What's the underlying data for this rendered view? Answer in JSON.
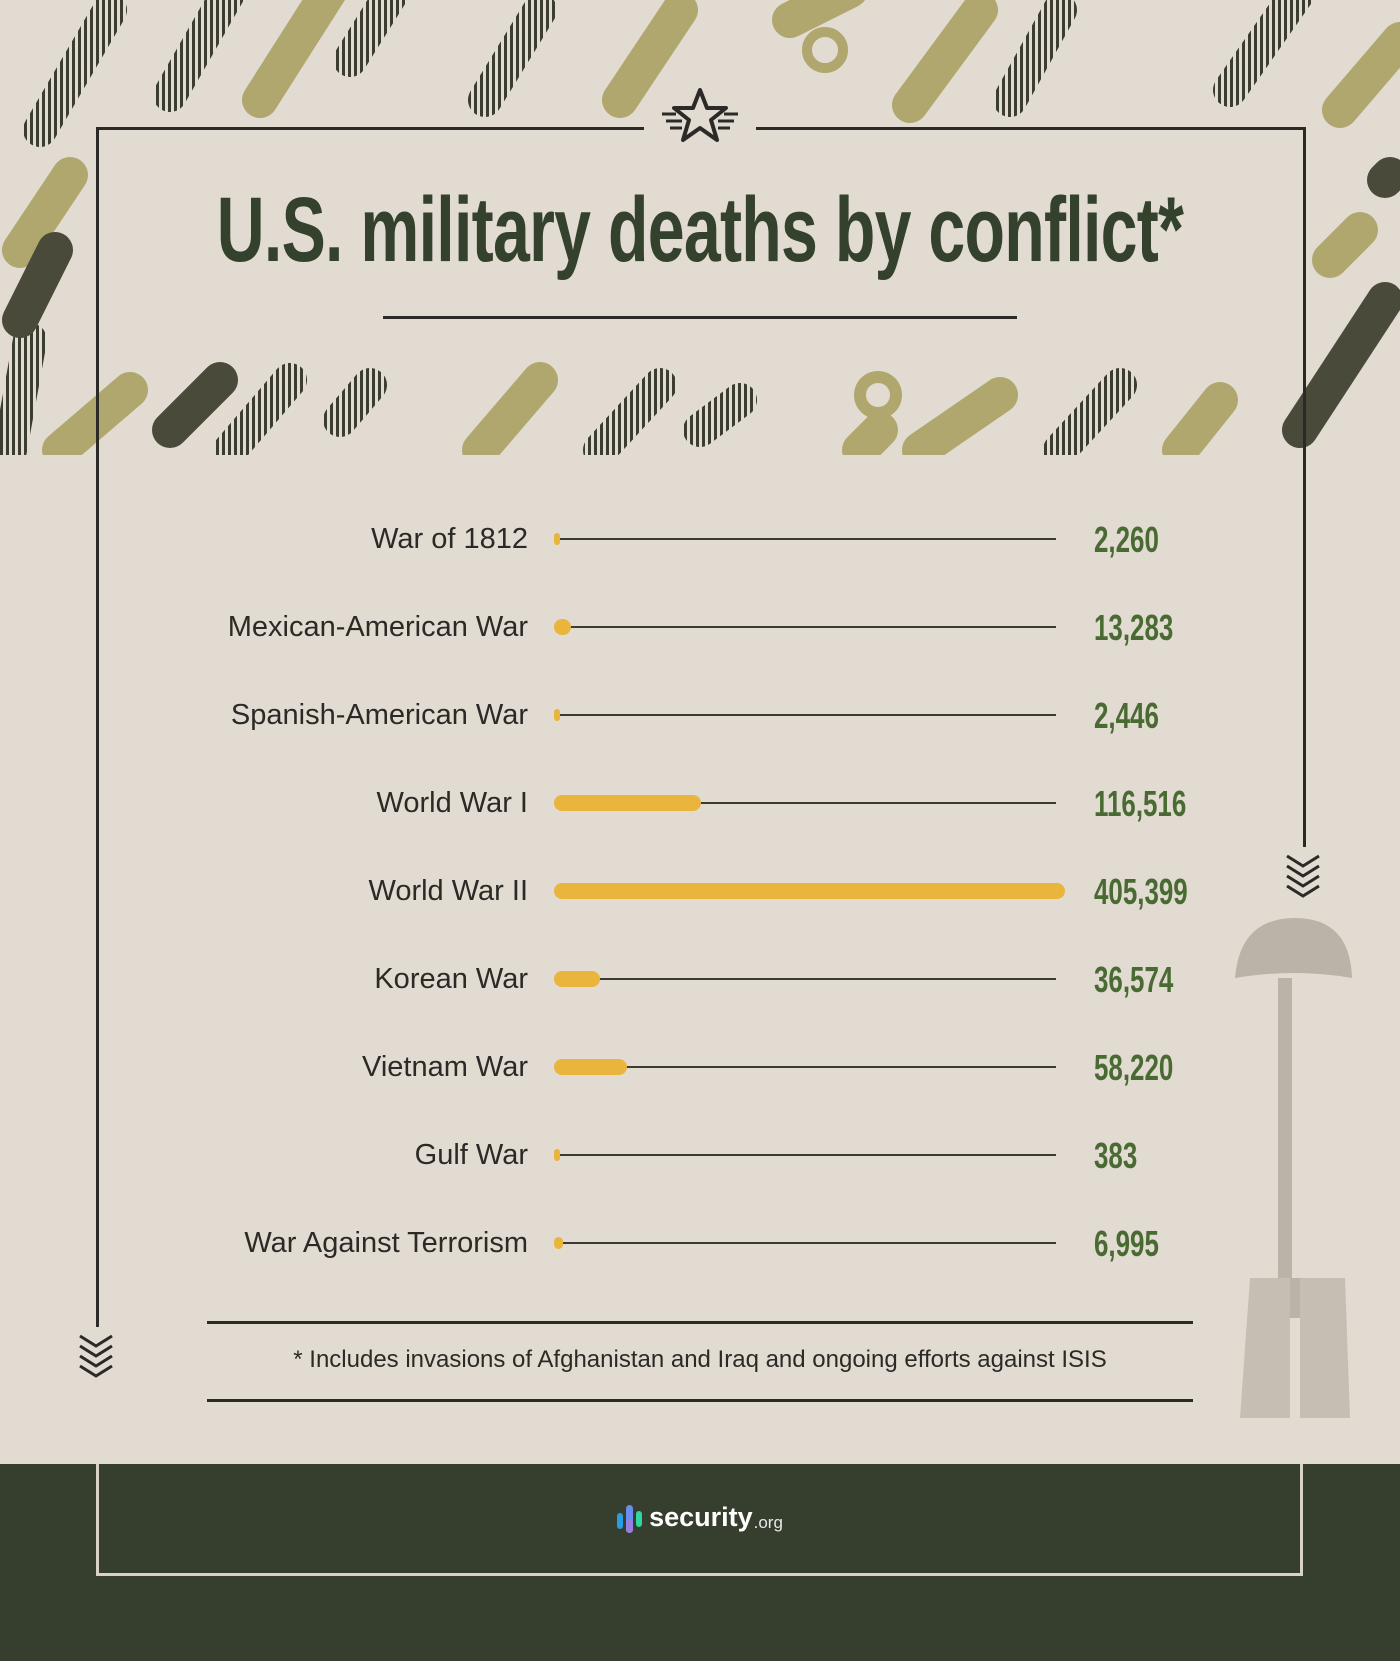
{
  "title": "U.S. military deaths by conflict*",
  "footnote": "* Includes invasions of Afghanistan and Iraq and ongoing efforts against ISIS",
  "logo": {
    "word": "security",
    "tld": ".org"
  },
  "colors": {
    "bar": "#e9b53c",
    "value": "#4a6a33",
    "title": "#34412c",
    "footer": "#363f2e"
  },
  "chart_data": {
    "type": "bar",
    "orientation": "horizontal",
    "title": "U.S. military deaths by conflict*",
    "categories": [
      "War of 1812",
      "Mexican-American War",
      "Spanish-American War",
      "World War I",
      "World War II",
      "Korean War",
      "Vietnam War",
      "Gulf War",
      "War Against Terrorism"
    ],
    "values": [
      2260,
      13283,
      2446,
      116516,
      405399,
      36574,
      58220,
      383,
      6995
    ],
    "value_labels": [
      "2,260",
      "13,283",
      "2,446",
      "116,516",
      "405,399",
      "36,574",
      "58,220",
      "383",
      "6,995"
    ],
    "xlim": [
      0,
      405399
    ]
  }
}
